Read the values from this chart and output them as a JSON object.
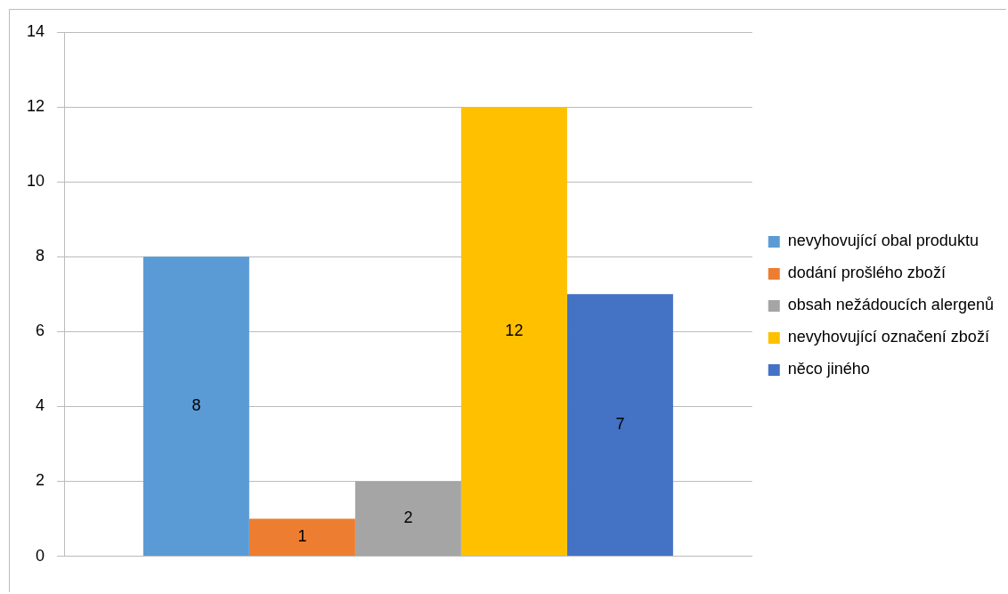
{
  "chart_data": {
    "type": "bar",
    "categories": [
      null
    ],
    "series": [
      {
        "name": "nevyhovující obal produktu",
        "color": "#5b9bd5",
        "values": [
          8
        ]
      },
      {
        "name": "dodání prošlého zboží",
        "color": "#ed7d31",
        "values": [
          1
        ]
      },
      {
        "name": "obsah nežádoucích alergenů",
        "color": "#a5a5a5",
        "values": [
          2
        ]
      },
      {
        "name": "nevyhovující označení zboží",
        "color": "#ffc000",
        "values": [
          12
        ]
      },
      {
        "name": "něco jiného",
        "color": "#4472c4",
        "values": [
          7
        ]
      }
    ],
    "ylim": [
      0,
      14
    ],
    "yticks": [
      0,
      2,
      4,
      6,
      8,
      10,
      12,
      14
    ],
    "grid": "y",
    "legend": "right",
    "data_labels": true
  }
}
